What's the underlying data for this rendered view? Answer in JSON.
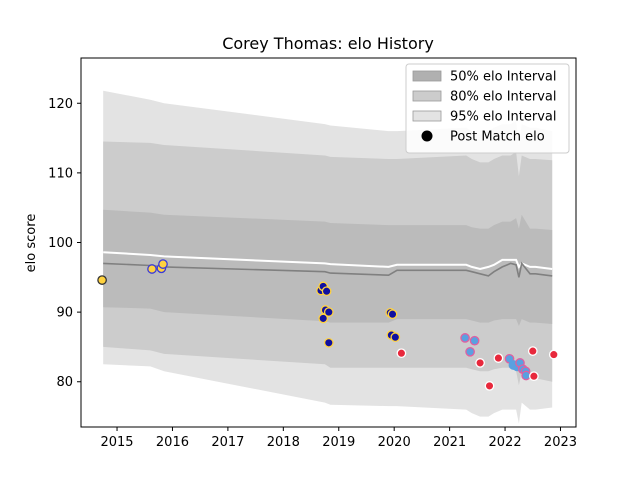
{
  "chart_data": {
    "type": "area",
    "title": "Corey Thomas: elo History",
    "xlabel": "",
    "ylabel": "elo score",
    "xlim": [
      2014.35,
      2023.28
    ],
    "ylim": [
      73.5,
      126.5
    ],
    "xticks": [
      2015,
      2016,
      2017,
      2018,
      2019,
      2020,
      2021,
      2022,
      2023
    ],
    "yticks": [
      80,
      90,
      100,
      110,
      120
    ],
    "legend_position": "upper right",
    "legend": [
      {
        "label": "50% elo Interval",
        "kind": "band",
        "color": "#b0b0b0"
      },
      {
        "label": "80% elo Interval",
        "kind": "band",
        "color": "#cccccc"
      },
      {
        "label": "95% elo Interval",
        "kind": "band",
        "color": "#e3e3e3"
      },
      {
        "label": "Post Match elo",
        "kind": "marker",
        "color": "#000000"
      }
    ],
    "bands": {
      "x": [
        2014.75,
        2015.6,
        2015.85,
        2018.75,
        2018.85,
        2019.9,
        2020.05,
        2021.3,
        2021.4,
        2021.55,
        2021.7,
        2021.8,
        2021.95,
        2022.1,
        2022.2,
        2022.25,
        2022.3,
        2022.45,
        2022.55,
        2022.85
      ],
      "p95_hi": [
        121.8,
        120.5,
        120.0,
        117.0,
        116.8,
        116.0,
        116.0,
        116.5,
        116.0,
        115.5,
        116.0,
        116.5,
        117.0,
        117.0,
        117.5,
        114.0,
        117.0,
        116.5,
        116.5,
        116.0
      ],
      "p80_hi": [
        114.5,
        114.3,
        114.0,
        112.5,
        112.3,
        112.0,
        112.0,
        112.5,
        112.0,
        111.5,
        111.5,
        112.0,
        112.5,
        112.5,
        113.0,
        109.5,
        112.5,
        112.0,
        112.0,
        111.8
      ],
      "p50_hi": [
        104.7,
        104.3,
        104.0,
        103.0,
        102.8,
        102.5,
        102.5,
        102.5,
        102.2,
        102.0,
        102.0,
        102.5,
        103.0,
        103.0,
        103.5,
        102.0,
        104.0,
        102.0,
        102.0,
        101.8
      ],
      "p50_lo": [
        90.7,
        90.5,
        90.0,
        88.7,
        88.5,
        88.5,
        89.0,
        89.0,
        88.8,
        88.5,
        88.5,
        88.8,
        89.0,
        89.0,
        89.0,
        88.0,
        89.0,
        88.5,
        88.5,
        88.3
      ],
      "p80_lo": [
        85.0,
        84.5,
        84.0,
        82.5,
        82.0,
        82.0,
        82.0,
        82.0,
        81.8,
        81.5,
        81.5,
        81.8,
        82.0,
        82.0,
        81.5,
        79.5,
        81.5,
        80.5,
        80.5,
        80.0
      ],
      "p95_lo": [
        82.5,
        82.2,
        81.5,
        77.0,
        76.7,
        76.5,
        76.5,
        76.0,
        75.5,
        75.0,
        75.0,
        75.5,
        76.0,
        76.0,
        76.0,
        74.0,
        77.0,
        76.0,
        76.0,
        76.3
      ],
      "mean": [
        98.6,
        98.2,
        98.0,
        97.0,
        96.9,
        96.5,
        96.8,
        96.8,
        96.5,
        96.2,
        96.5,
        96.8,
        97.5,
        97.5,
        97.5,
        96.5,
        97.0,
        96.5,
        96.5,
        96.2
      ],
      "median": [
        97.0,
        96.7,
        96.5,
        95.8,
        95.6,
        95.3,
        96.0,
        96.0,
        95.8,
        95.5,
        95.2,
        95.8,
        96.5,
        97.0,
        96.8,
        95.0,
        97.0,
        95.5,
        95.5,
        95.2
      ]
    },
    "points": [
      {
        "x": 2014.73,
        "y": 94.6,
        "fill": "#ffd23f",
        "edge": "#333333"
      },
      {
        "x": 2015.63,
        "y": 96.2,
        "fill": "#ffd23f",
        "edge": "#3a3ad8"
      },
      {
        "x": 2015.8,
        "y": 96.3,
        "fill": "#ffd23f",
        "edge": "#3a3ad8"
      },
      {
        "x": 2015.83,
        "y": 96.9,
        "fill": "#ffd23f",
        "edge": "#3a3ad8"
      },
      {
        "x": 2018.68,
        "y": 93.1,
        "fill": "#1010a0",
        "edge": "#ffd23f"
      },
      {
        "x": 2018.72,
        "y": 93.7,
        "fill": "#1010a0",
        "edge": "#ffd23f"
      },
      {
        "x": 2018.78,
        "y": 93.0,
        "fill": "#1010a0",
        "edge": "#ffd23f"
      },
      {
        "x": 2018.72,
        "y": 89.1,
        "fill": "#1010a0",
        "edge": "#ffd23f"
      },
      {
        "x": 2018.76,
        "y": 90.3,
        "fill": "#1010a0",
        "edge": "#ffd23f"
      },
      {
        "x": 2018.82,
        "y": 90.0,
        "fill": "#1010a0",
        "edge": "#ffd23f"
      },
      {
        "x": 2018.82,
        "y": 85.6,
        "fill": "#1010a0",
        "edge": "#ffd23f"
      },
      {
        "x": 2019.93,
        "y": 89.9,
        "fill": "#1010a0",
        "edge": "#ffd23f"
      },
      {
        "x": 2019.97,
        "y": 89.7,
        "fill": "#1010a0",
        "edge": "#ffd23f"
      },
      {
        "x": 2019.95,
        "y": 86.7,
        "fill": "#1010a0",
        "edge": "#ffd23f"
      },
      {
        "x": 2020.02,
        "y": 86.4,
        "fill": "#1010a0",
        "edge": "#ffd23f"
      },
      {
        "x": 2020.13,
        "y": 84.1,
        "fill": "#e8283c",
        "edge": "#ffffff"
      },
      {
        "x": 2021.28,
        "y": 86.3,
        "fill": "#5aa0e0",
        "edge": "#e060a0"
      },
      {
        "x": 2021.45,
        "y": 85.9,
        "fill": "#5aa0e0",
        "edge": "#e060a0"
      },
      {
        "x": 2021.37,
        "y": 84.3,
        "fill": "#5aa0e0",
        "edge": "#e060a0"
      },
      {
        "x": 2021.55,
        "y": 82.7,
        "fill": "#e8283c",
        "edge": "#ffffff"
      },
      {
        "x": 2021.72,
        "y": 79.4,
        "fill": "#e8283c",
        "edge": "#ffffff"
      },
      {
        "x": 2021.88,
        "y": 83.4,
        "fill": "#e8283c",
        "edge": "#ffffff"
      },
      {
        "x": 2022.08,
        "y": 83.3,
        "fill": "#5aa0e0",
        "edge": "#e060a0"
      },
      {
        "x": 2022.15,
        "y": 82.4,
        "fill": "#5aa0e0",
        "edge": "#5aa0e0"
      },
      {
        "x": 2022.22,
        "y": 82.2,
        "fill": "#5aa0e0",
        "edge": "#5aa0e0"
      },
      {
        "x": 2022.27,
        "y": 82.7,
        "fill": "#5aa0e0",
        "edge": "#e060a0"
      },
      {
        "x": 2022.32,
        "y": 81.8,
        "fill": "#5aa0e0",
        "edge": "#e060a0"
      },
      {
        "x": 2022.37,
        "y": 81.5,
        "fill": "#5aa0e0",
        "edge": "#e060a0"
      },
      {
        "x": 2022.38,
        "y": 80.9,
        "fill": "#5aa0e0",
        "edge": "#e060a0"
      },
      {
        "x": 2022.5,
        "y": 84.4,
        "fill": "#e8283c",
        "edge": "#ffffff"
      },
      {
        "x": 2022.52,
        "y": 80.8,
        "fill": "#e8283c",
        "edge": "#ffffff"
      },
      {
        "x": 2022.88,
        "y": 83.9,
        "fill": "#e8283c",
        "edge": "#ffffff"
      }
    ]
  }
}
